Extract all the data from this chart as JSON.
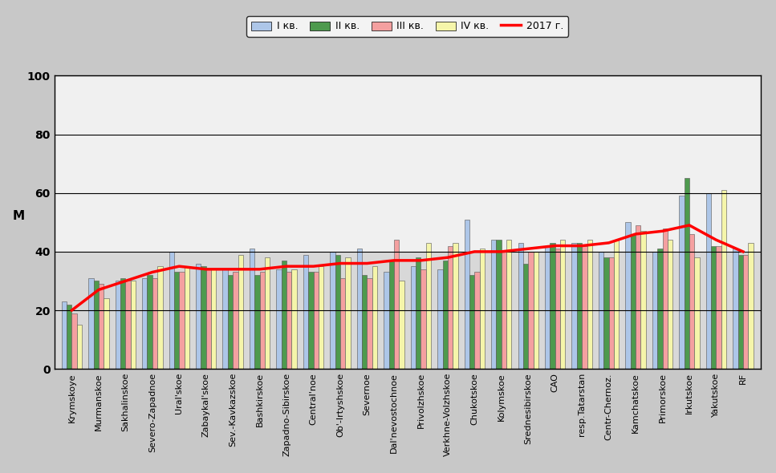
{
  "categories": [
    "Krymskoye",
    "Murmanskoe",
    "Sakhalinskoe",
    "Severo-Zapadnoe",
    "Ural'skoe",
    "Zabaykal'skoe",
    "Sev.-Kavkazskoe",
    "Bashkirskoe",
    "Zapadno-Sibirskoe",
    "Central'noe",
    "Ob'-Irtyshskoe",
    "Severnoe",
    "Dal'nevostochnoe",
    "Privolzhskoe",
    "Verkhne-Volzhskoe",
    "Chukotskoe",
    "Kolymskoe",
    "Srednesibirskoe",
    "CAO",
    "resp.Tatarstan",
    "Centr-Chernoz.",
    "Kamchatskoe",
    "Primorskoe",
    "Irkutskoe",
    "Yakutskoe",
    "RF"
  ],
  "q1": [
    23,
    31,
    30,
    31,
    40,
    36,
    34,
    41,
    34,
    39,
    40,
    41,
    33,
    35,
    34,
    51,
    44,
    43,
    42,
    43,
    40,
    50,
    40,
    59,
    60,
    41
  ],
  "q2": [
    22,
    30,
    31,
    32,
    33,
    35,
    32,
    32,
    37,
    33,
    39,
    32,
    37,
    38,
    37,
    32,
    44,
    36,
    43,
    43,
    38,
    46,
    41,
    65,
    42,
    39
  ],
  "q3": [
    19,
    29,
    30,
    31,
    33,
    34,
    33,
    33,
    33,
    33,
    31,
    31,
    44,
    34,
    42,
    33,
    40,
    40,
    41,
    42,
    38,
    49,
    48,
    46,
    42,
    39
  ],
  "q4": [
    15,
    24,
    30,
    35,
    35,
    34,
    39,
    38,
    34,
    35,
    38,
    35,
    30,
    43,
    43,
    41,
    44,
    40,
    44,
    44,
    44,
    47,
    44,
    38,
    61,
    43
  ],
  "line_2017": [
    20,
    27,
    30,
    33,
    35,
    34,
    34,
    34,
    35,
    35,
    36,
    36,
    37,
    37,
    38,
    40,
    40,
    41,
    42,
    42,
    43,
    46,
    47,
    49,
    44,
    40
  ],
  "bar_colors": [
    "#adc6e8",
    "#4e9a4e",
    "#f4a0a0",
    "#f5f5aa"
  ],
  "line_color": "#ff0000",
  "ylabel": "М",
  "ylim": [
    0,
    100
  ],
  "yticks": [
    0,
    20,
    40,
    60,
    80,
    100
  ],
  "legend_labels": [
    "I кв.",
    "II кв.",
    "III кв.",
    "IV кв.",
    "2017 г."
  ],
  "outer_bg": "#c8c8c8",
  "plot_bg": "#d8d8d8",
  "upper_bg": "#f0f0f0",
  "bar_width": 0.19,
  "figsize": [
    9.67,
    5.9
  ],
  "dpi": 100
}
